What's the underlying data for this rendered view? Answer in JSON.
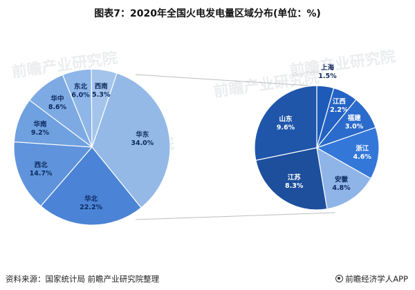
{
  "title": "图表7：2020年全国火电发电量区域分布(单位：%)",
  "source": "资料来源：国家统计局 前瞻产业研究院整理",
  "brand": "前瞻经济学人APP",
  "watermark": "前瞻产业研究院",
  "chart_data": [
    {
      "type": "pie",
      "unit": "%",
      "slices": [
        {
          "label": "华东",
          "value": 34.0,
          "color": "#94b9e6"
        },
        {
          "label": "华北",
          "value": 22.2,
          "color": "#4b84d6"
        },
        {
          "label": "西北",
          "value": 14.7,
          "color": "#5f94dc"
        },
        {
          "label": "华南",
          "value": 9.2,
          "color": "#6fa0e0"
        },
        {
          "label": "华中",
          "value": 8.6,
          "color": "#7eaae3"
        },
        {
          "label": "东北",
          "value": 6.0,
          "color": "#8fb6e8"
        },
        {
          "label": "西南",
          "value": 5.3,
          "color": "#a4c4ec"
        }
      ]
    },
    {
      "type": "pie",
      "unit": "%",
      "slices": [
        {
          "label": "上海",
          "value": 1.5,
          "color": "#1e5ab8"
        },
        {
          "label": "江西",
          "value": 2.2,
          "color": "#2463c4"
        },
        {
          "label": "福建",
          "value": 3.0,
          "color": "#2a6bcc"
        },
        {
          "label": "浙江",
          "value": 4.6,
          "color": "#3377d8"
        },
        {
          "label": "安徽",
          "value": 4.8,
          "color": "#8fb4e8"
        },
        {
          "label": "江苏",
          "value": 8.3,
          "color": "#1d4f9c"
        },
        {
          "label": "山东",
          "value": 9.6,
          "color": "#1f56aa"
        }
      ]
    }
  ]
}
